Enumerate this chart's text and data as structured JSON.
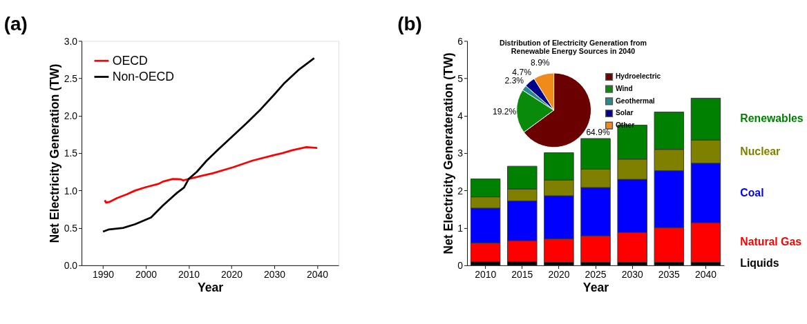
{
  "chart_data": [
    {
      "type": "line",
      "title": "(a)",
      "xlabel": "Year",
      "ylabel": "Net Electricity Generation (TW)",
      "xlim": [
        1985,
        2045
      ],
      "xticks": [
        1990,
        2000,
        2010,
        2020,
        2030,
        2040
      ],
      "ylim": [
        0,
        3
      ],
      "yticks": [
        {
          "value": 0,
          "label": "0.0"
        },
        0.5,
        {
          "value": 1,
          "label": "1.0"
        },
        1.5,
        {
          "value": 2,
          "label": "2.0"
        },
        2.5,
        {
          "value": 3,
          "label": "3.0"
        }
      ],
      "grid": false,
      "legend": "top left",
      "marker": "none",
      "line_style": "solid",
      "series": [
        {
          "name": "OECD",
          "color": "#ff0000",
          "x": [
            1990.4,
            1990.7,
            1991.4,
            1993.3,
            1995.6,
            1997.5,
            2000,
            2003,
            2004,
            2006.3,
            2008.2,
            2008.7,
            2010,
            2013.3,
            2015.6,
            2020.3,
            2024.9,
            2030,
            2031.9,
            2034.2,
            2037.5,
            2040
          ],
          "values": [
            0.87,
            0.84,
            0.845,
            0.9,
            0.95,
            1.0,
            1.045,
            1.09,
            1.12,
            1.155,
            1.15,
            1.135,
            1.155,
            1.2,
            1.23,
            1.31,
            1.4,
            1.475,
            1.5,
            1.54,
            1.58,
            1.57
          ]
        },
        {
          "name": "Non-OECD",
          "color": "#000000",
          "x": [
            1990,
            1991.4,
            1994.7,
            1997.5,
            2001.2,
            2004,
            2007.3,
            2008.9,
            2010,
            2011.9,
            2014.2,
            2017,
            2020.3,
            2023.5,
            2026.8,
            2030,
            2032.4,
            2035.6,
            2039.3
          ],
          "values": [
            0.45,
            0.48,
            0.5,
            0.55,
            0.64,
            0.8,
            0.97,
            1.04,
            1.155,
            1.25,
            1.4,
            1.555,
            1.73,
            1.9,
            2.085,
            2.285,
            2.44,
            2.61,
            2.77
          ]
        }
      ]
    },
    {
      "type": "bar",
      "title": "(b)",
      "stacked": true,
      "xlabel": "Year",
      "ylabel": "Net Electricity Generateration (TW)",
      "categories": [
        "2010",
        "2015",
        "2020",
        "2025",
        "2030",
        "2035",
        "2040"
      ],
      "ylim": [
        0,
        6
      ],
      "yticks": [
        0,
        1,
        2,
        3,
        4,
        5,
        6
      ],
      "grid": false,
      "legend": false,
      "series": [
        {
          "name": "Liquids",
          "color": "#000000",
          "values": [
            0.1,
            0.1,
            0.08,
            0.08,
            0.08,
            0.08,
            0.08
          ]
        },
        {
          "name": "Natural Gas",
          "color": "#ff0000",
          "values": [
            0.5,
            0.56,
            0.63,
            0.71,
            0.8,
            0.93,
            1.06
          ]
        },
        {
          "name": "Coal",
          "color": "#0000ff",
          "values": [
            0.93,
            1.06,
            1.15,
            1.29,
            1.42,
            1.52,
            1.59
          ]
        },
        {
          "name": "Nuclear",
          "color": "#808000",
          "values": [
            0.3,
            0.32,
            0.42,
            0.49,
            0.54,
            0.57,
            0.62
          ]
        },
        {
          "name": "Renewables",
          "color": "#008000",
          "values": [
            0.48,
            0.61,
            0.73,
            0.82,
            0.91,
            1.0,
            1.12
          ]
        }
      ]
    },
    {
      "type": "pie",
      "title": "Distribution of Electricity Generation from Renewable Energy Sources in 2040",
      "categories": [
        "Hydroelectric",
        "Wind",
        "Geothermal",
        "Solar",
        "Other"
      ],
      "values": [
        64.9,
        19.2,
        2.3,
        4.7,
        8.9
      ],
      "colors": [
        "#6b0000",
        "#0a8a0a",
        "#2a8a8a",
        "#00008b",
        "#f08a1a"
      ],
      "value_labels": [
        "64.9%",
        "19.2%",
        "2.3%",
        "4.7%",
        "8.9%"
      ],
      "legend": "right"
    }
  ]
}
